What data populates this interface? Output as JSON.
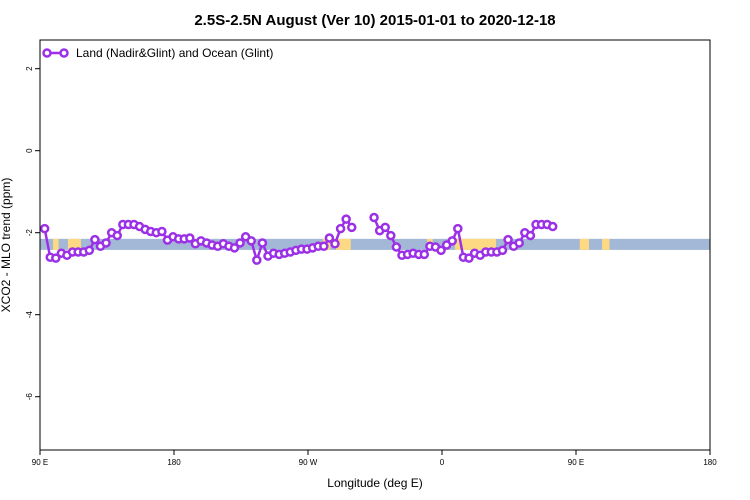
{
  "chart_data": {
    "type": "line",
    "title": "2.5S-2.5N August (Ver 10)   2015-01-01 to 2020-12-18",
    "xlabel": "Longitude (deg E)",
    "ylabel": "XCO2 - MLO trend (ppm)",
    "xlim": [
      90,
      450
    ],
    "ylim": [
      -7.3,
      2.7
    ],
    "x_ticks": [
      {
        "value": 90,
        "label": "90 E"
      },
      {
        "value": 162,
        "label": "180"
      },
      {
        "value": 234,
        "label": "90 W"
      },
      {
        "value": 306,
        "label": "0"
      },
      {
        "value": 378,
        "label": "90 E"
      },
      {
        "value": 450,
        "label": "180"
      }
    ],
    "y_ticks": [
      {
        "value": 2,
        "label": "2"
      },
      {
        "value": 0,
        "label": "0"
      },
      {
        "value": -2,
        "label": "-2"
      },
      {
        "value": -4,
        "label": "-4"
      },
      {
        "value": -6,
        "label": "-6"
      }
    ],
    "legend": {
      "position": "top-left",
      "label": "Land (Nadir&Glint) and Ocean (Glint)"
    },
    "colors": {
      "series": "#9b30e6",
      "ocean": "#a3b8d6",
      "land": "#fcd982"
    },
    "surface_band": {
      "y_range": [
        -2.42,
        -2.15
      ],
      "land_segments": [
        [
          97,
          100
        ],
        [
          105,
          112
        ],
        [
          242,
          246
        ],
        [
          249,
          257
        ],
        [
          298,
          301
        ],
        [
          313,
          335
        ],
        [
          380,
          385
        ],
        [
          392,
          396
        ]
      ]
    },
    "series": [
      {
        "values": [
          {
            "x": 92.5,
            "y": -1.9
          },
          {
            "x": 95.5,
            "y": -2.6
          },
          {
            "x": 98.5,
            "y": -2.62
          },
          {
            "x": 101.5,
            "y": -2.5
          },
          {
            "x": 104.5,
            "y": -2.55
          },
          {
            "x": 107.5,
            "y": -2.47
          },
          {
            "x": 110.5,
            "y": -2.47
          },
          {
            "x": 113.5,
            "y": -2.47
          },
          {
            "x": 116.5,
            "y": -2.43
          },
          {
            "x": 119.5,
            "y": -2.17
          },
          {
            "x": 122.5,
            "y": -2.33
          },
          {
            "x": 125.5,
            "y": -2.25
          },
          {
            "x": 128.5,
            "y": -2.0
          },
          {
            "x": 131.5,
            "y": -2.07
          },
          {
            "x": 134.5,
            "y": -1.8
          },
          {
            "x": 137.5,
            "y": -1.8
          },
          {
            "x": 140.5,
            "y": -1.8
          },
          {
            "x": 143.5,
            "y": -1.85
          },
          {
            "x": 146.5,
            "y": -1.92
          },
          {
            "x": 149.5,
            "y": -1.97
          },
          {
            "x": 152.5,
            "y": -2.0
          },
          {
            "x": 155.5,
            "y": -1.97
          },
          {
            "x": 158.5,
            "y": -2.18
          },
          {
            "x": 161.5,
            "y": -2.1
          },
          {
            "x": 164.5,
            "y": -2.15
          },
          {
            "x": 167.5,
            "y": -2.15
          },
          {
            "x": 170.5,
            "y": -2.13
          },
          {
            "x": 173.5,
            "y": -2.27
          },
          {
            "x": 176.5,
            "y": -2.2
          },
          {
            "x": 179.5,
            "y": -2.25
          },
          {
            "x": 182.5,
            "y": -2.3
          },
          {
            "x": 185.5,
            "y": -2.33
          },
          {
            "x": 188.5,
            "y": -2.27
          },
          {
            "x": 191.5,
            "y": -2.33
          },
          {
            "x": 194.5,
            "y": -2.37
          },
          {
            "x": 197.5,
            "y": -2.25
          },
          {
            "x": 200.5,
            "y": -2.1
          },
          {
            "x": 203.5,
            "y": -2.2
          },
          {
            "x": 206.5,
            "y": -2.67
          },
          {
            "x": 209.5,
            "y": -2.25
          },
          {
            "x": 212.5,
            "y": -2.57
          },
          {
            "x": 215.5,
            "y": -2.5
          },
          {
            "x": 218.5,
            "y": -2.53
          },
          {
            "x": 221.5,
            "y": -2.5
          },
          {
            "x": 224.5,
            "y": -2.47
          },
          {
            "x": 227.5,
            "y": -2.43
          },
          {
            "x": 230.5,
            "y": -2.4
          },
          {
            "x": 233.5,
            "y": -2.4
          },
          {
            "x": 236.5,
            "y": -2.37
          },
          {
            "x": 239.5,
            "y": -2.33
          },
          {
            "x": 242.5,
            "y": -2.33
          },
          {
            "x": 245.5,
            "y": -2.13
          },
          {
            "x": 248.5,
            "y": -2.27
          },
          {
            "x": 251.5,
            "y": -1.9
          },
          {
            "x": 254.5,
            "y": -1.67
          },
          {
            "x": 257.5,
            "y": -1.87
          },
          {
            "x": 269.5,
            "y": -1.63
          },
          {
            "x": 272.5,
            "y": -1.95
          },
          {
            "x": 275.5,
            "y": -1.87
          },
          {
            "x": 278.5,
            "y": -2.07
          },
          {
            "x": 281.5,
            "y": -2.35
          },
          {
            "x": 284.5,
            "y": -2.55
          },
          {
            "x": 287.5,
            "y": -2.53
          },
          {
            "x": 290.5,
            "y": -2.5
          },
          {
            "x": 293.5,
            "y": -2.53
          },
          {
            "x": 296.5,
            "y": -2.53
          },
          {
            "x": 299.5,
            "y": -2.33
          },
          {
            "x": 302.5,
            "y": -2.35
          },
          {
            "x": 305.5,
            "y": -2.43
          },
          {
            "x": 308.5,
            "y": -2.3
          },
          {
            "x": 311.5,
            "y": -2.2
          },
          {
            "x": 314.5,
            "y": -1.9
          },
          {
            "x": 317.5,
            "y": -2.6
          },
          {
            "x": 320.5,
            "y": -2.62
          },
          {
            "x": 323.5,
            "y": -2.5
          },
          {
            "x": 326.5,
            "y": -2.55
          },
          {
            "x": 329.5,
            "y": -2.47
          },
          {
            "x": 332.5,
            "y": -2.47
          },
          {
            "x": 335.5,
            "y": -2.47
          },
          {
            "x": 338.5,
            "y": -2.43
          },
          {
            "x": 341.5,
            "y": -2.17
          },
          {
            "x": 344.5,
            "y": -2.33
          },
          {
            "x": 347.5,
            "y": -2.25
          },
          {
            "x": 350.5,
            "y": -2.0
          },
          {
            "x": 353.5,
            "y": -2.07
          },
          {
            "x": 356.5,
            "y": -1.8
          },
          {
            "x": 359.5,
            "y": -1.8
          },
          {
            "x": 362.5,
            "y": -1.8
          },
          {
            "x": 365.5,
            "y": -1.85
          }
        ]
      }
    ]
  }
}
